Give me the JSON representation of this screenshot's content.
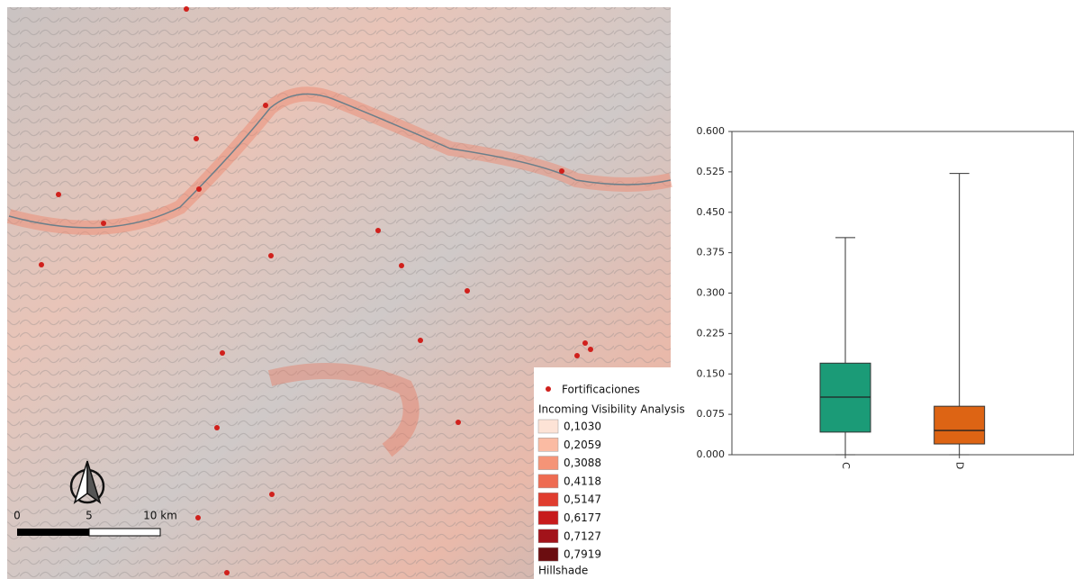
{
  "map": {
    "legend": {
      "points_label": "Fortificaciones",
      "raster_title": "Incoming Visibility Analysis",
      "classes": [
        {
          "label": "0,1030",
          "color": "#fde3d6"
        },
        {
          "label": "0,2059",
          "color": "#fbbba3"
        },
        {
          "label": "0,3088",
          "color": "#f59477"
        },
        {
          "label": "0,4118",
          "color": "#ee6b52"
        },
        {
          "label": "0,5147",
          "color": "#e03d2f"
        },
        {
          "label": "0,6177",
          "color": "#c71b1c"
        },
        {
          "label": "0,7127",
          "color": "#a2131a"
        },
        {
          "label": "0,7919",
          "color": "#6b0d10"
        }
      ],
      "hillshade_label": "Hillshade"
    },
    "scale_labels": [
      "0",
      "5",
      "10 km"
    ]
  },
  "chart_data": {
    "type": "box",
    "categories": [
      "C",
      "D"
    ],
    "boxes": [
      {
        "color": "#1b9b77",
        "min": 0.0,
        "q1": 0.042,
        "median": 0.107,
        "q3": 0.17,
        "max": 0.403
      },
      {
        "color": "#dd6414",
        "min": 0.0,
        "q1": 0.02,
        "median": 0.045,
        "q3": 0.09,
        "max": 0.522
      }
    ],
    "ylim": [
      0,
      0.6
    ],
    "yticks": [
      {
        "value": 0,
        "label": "0.000"
      },
      {
        "value": 0.075,
        "label": "0.075"
      },
      {
        "value": 0.15,
        "label": "0.150"
      },
      {
        "value": 0.225,
        "label": "0.225"
      },
      {
        "value": 0.3,
        "label": "0.300"
      },
      {
        "value": 0.375,
        "label": "0.375"
      },
      {
        "value": 0.45,
        "label": "0.450"
      },
      {
        "value": 0.525,
        "label": "0.525"
      },
      {
        "value": 0.6,
        "label": "0.600"
      }
    ]
  }
}
